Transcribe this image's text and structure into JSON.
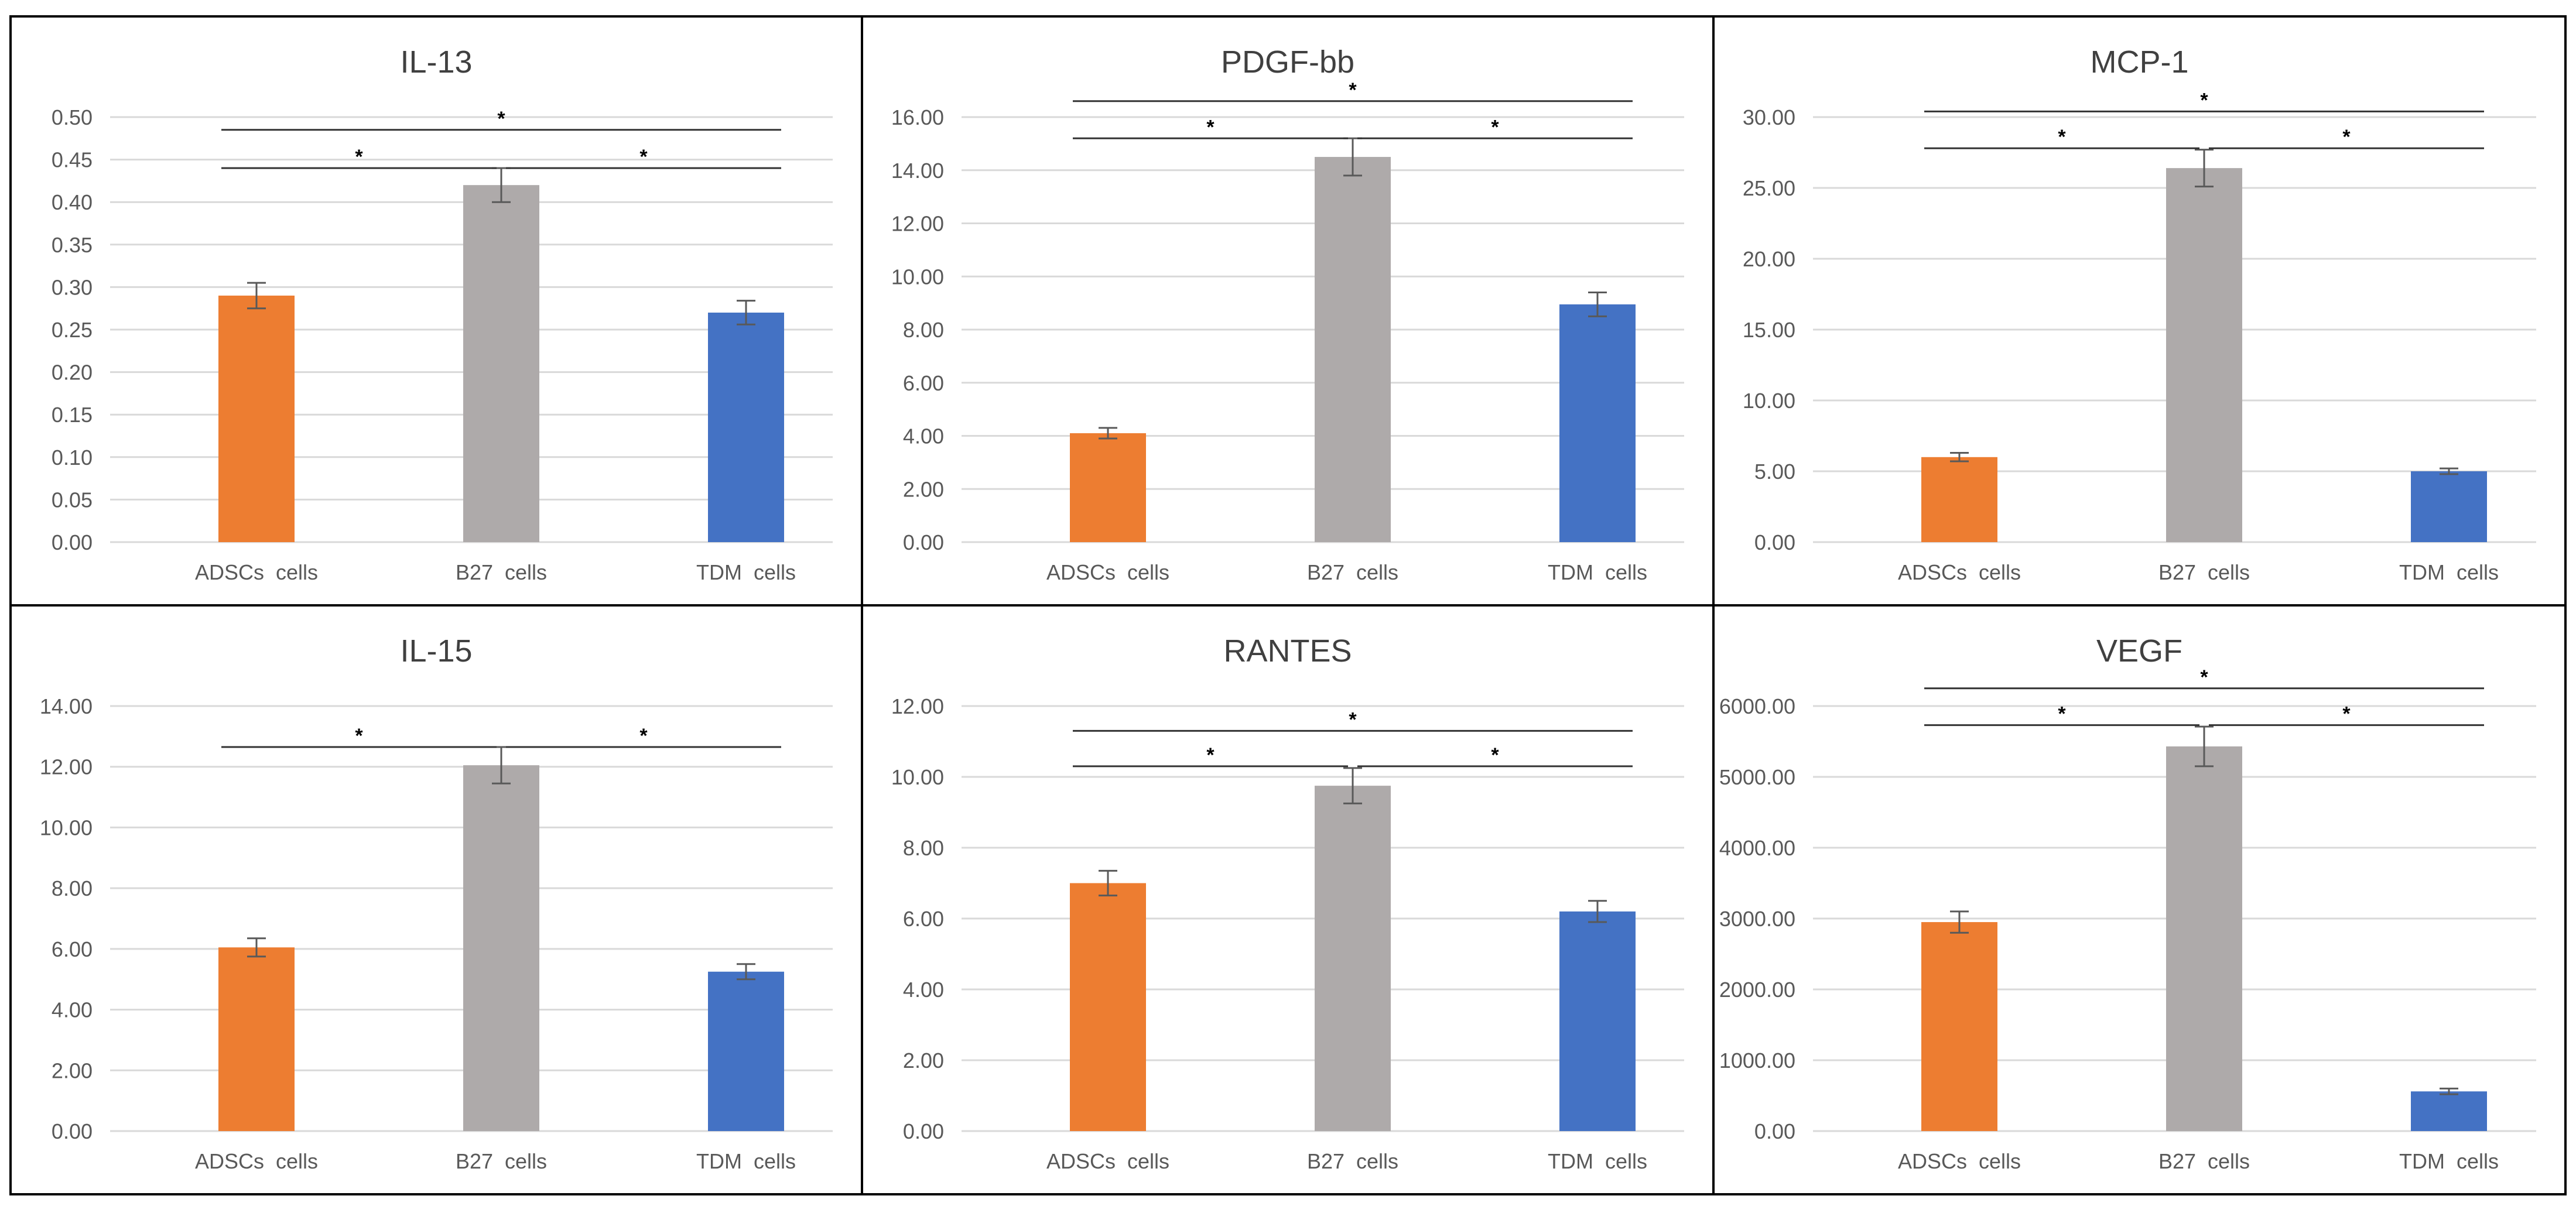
{
  "chart_data": [
    {
      "type": "bar",
      "title": "IL-13",
      "categories": [
        "ADSCs  cells",
        "B27  cells",
        "TDM  cells"
      ],
      "values": [
        0.29,
        0.42,
        0.27
      ],
      "errors": [
        0.015,
        0.02,
        0.014
      ],
      "ylim": [
        0,
        0.5
      ],
      "yticks": [
        "0.00",
        "0.05",
        "0.10",
        "0.15",
        "0.20",
        "0.25",
        "0.30",
        "0.35",
        "0.40",
        "0.45",
        "0.50"
      ],
      "xlabel": "",
      "ylabel": "",
      "grid": true,
      "significance": [
        {
          "from": 0,
          "to": 1,
          "y": 0.44,
          "label": "*"
        },
        {
          "from": 1,
          "to": 2,
          "y": 0.44,
          "label": "*"
        },
        {
          "from": 0,
          "to": 2,
          "y": 0.485,
          "label": "*"
        }
      ]
    },
    {
      "type": "bar",
      "title": "PDGF-bb",
      "categories": [
        "ADSCs  cells",
        "B27  cells",
        "TDM  cells"
      ],
      "values": [
        4.1,
        14.5,
        8.95
      ],
      "errors": [
        0.2,
        0.7,
        0.45
      ],
      "ylim": [
        0,
        16
      ],
      "yticks": [
        "0.00",
        "2.00",
        "4.00",
        "6.00",
        "8.00",
        "10.00",
        "12.00",
        "14.00",
        "16.00"
      ],
      "xlabel": "",
      "ylabel": "",
      "grid": true,
      "significance": [
        {
          "from": 0,
          "to": 1,
          "y": 15.2,
          "label": "*"
        },
        {
          "from": 1,
          "to": 2,
          "y": 15.2,
          "label": "*"
        },
        {
          "from": 0,
          "to": 2,
          "y": 16.6,
          "label": "*"
        }
      ]
    },
    {
      "type": "bar",
      "title": "MCP-1",
      "categories": [
        "ADSCs  cells",
        "B27  cells",
        "TDM  cells"
      ],
      "values": [
        6.0,
        26.4,
        5.0
      ],
      "errors": [
        0.3,
        1.3,
        0.2
      ],
      "ylim": [
        0,
        30
      ],
      "yticks": [
        "0.00",
        "5.00",
        "10.00",
        "15.00",
        "20.00",
        "25.00",
        "30.00"
      ],
      "xlabel": "",
      "ylabel": "",
      "grid": true,
      "significance": [
        {
          "from": 0,
          "to": 1,
          "y": 27.8,
          "label": "*"
        },
        {
          "from": 1,
          "to": 2,
          "y": 27.8,
          "label": "*"
        },
        {
          "from": 0,
          "to": 2,
          "y": 30.4,
          "label": "*"
        }
      ]
    },
    {
      "type": "bar",
      "title": "IL-15",
      "categories": [
        "ADSCs  cells",
        "B27  cells",
        "TDM  cells"
      ],
      "values": [
        6.05,
        12.05,
        5.25
      ],
      "errors": [
        0.3,
        0.6,
        0.25
      ],
      "ylim": [
        0,
        14
      ],
      "yticks": [
        "0.00",
        "2.00",
        "4.00",
        "6.00",
        "8.00",
        "10.00",
        "12.00",
        "14.00"
      ],
      "xlabel": "",
      "ylabel": "",
      "grid": true,
      "significance": [
        {
          "from": 0,
          "to": 1,
          "y": 12.65,
          "label": "*"
        },
        {
          "from": 1,
          "to": 2,
          "y": 12.65,
          "label": "*"
        }
      ]
    },
    {
      "type": "bar",
      "title": "RANTES",
      "categories": [
        "ADSCs  cells",
        "B27  cells",
        "TDM  cells"
      ],
      "values": [
        7.0,
        9.75,
        6.2
      ],
      "errors": [
        0.35,
        0.5,
        0.3
      ],
      "ylim": [
        0,
        12
      ],
      "yticks": [
        "0.00",
        "2.00",
        "4.00",
        "6.00",
        "8.00",
        "10.00",
        "12.00"
      ],
      "xlabel": "",
      "ylabel": "",
      "grid": true,
      "significance": [
        {
          "from": 0,
          "to": 1,
          "y": 10.3,
          "label": "*"
        },
        {
          "from": 1,
          "to": 2,
          "y": 10.3,
          "label": "*"
        },
        {
          "from": 0,
          "to": 2,
          "y": 11.3,
          "label": "*"
        }
      ]
    },
    {
      "type": "bar",
      "title": "VEGF",
      "categories": [
        "ADSCs  cells",
        "B27  cells",
        "TDM  cells"
      ],
      "values": [
        2950,
        5430,
        560
      ],
      "errors": [
        150,
        280,
        40
      ],
      "ylim": [
        0,
        6000
      ],
      "yticks": [
        "0.00",
        "1000.00",
        "2000.00",
        "3000.00",
        "4000.00",
        "5000.00",
        "6000.00"
      ],
      "xlabel": "",
      "ylabel": "",
      "grid": true,
      "significance": [
        {
          "from": 0,
          "to": 1,
          "y": 5730,
          "label": "*"
        },
        {
          "from": 1,
          "to": 2,
          "y": 5730,
          "label": "*"
        },
        {
          "from": 0,
          "to": 2,
          "y": 6250,
          "label": "*"
        }
      ]
    }
  ],
  "colors": {
    "bars": [
      "#ED7D31",
      "#AEAAAA",
      "#4472C4"
    ],
    "grid": "#D9D9D9",
    "axis_text": "#595959",
    "title_text": "#404040",
    "error_bar": "#595959",
    "border": "#000000"
  }
}
